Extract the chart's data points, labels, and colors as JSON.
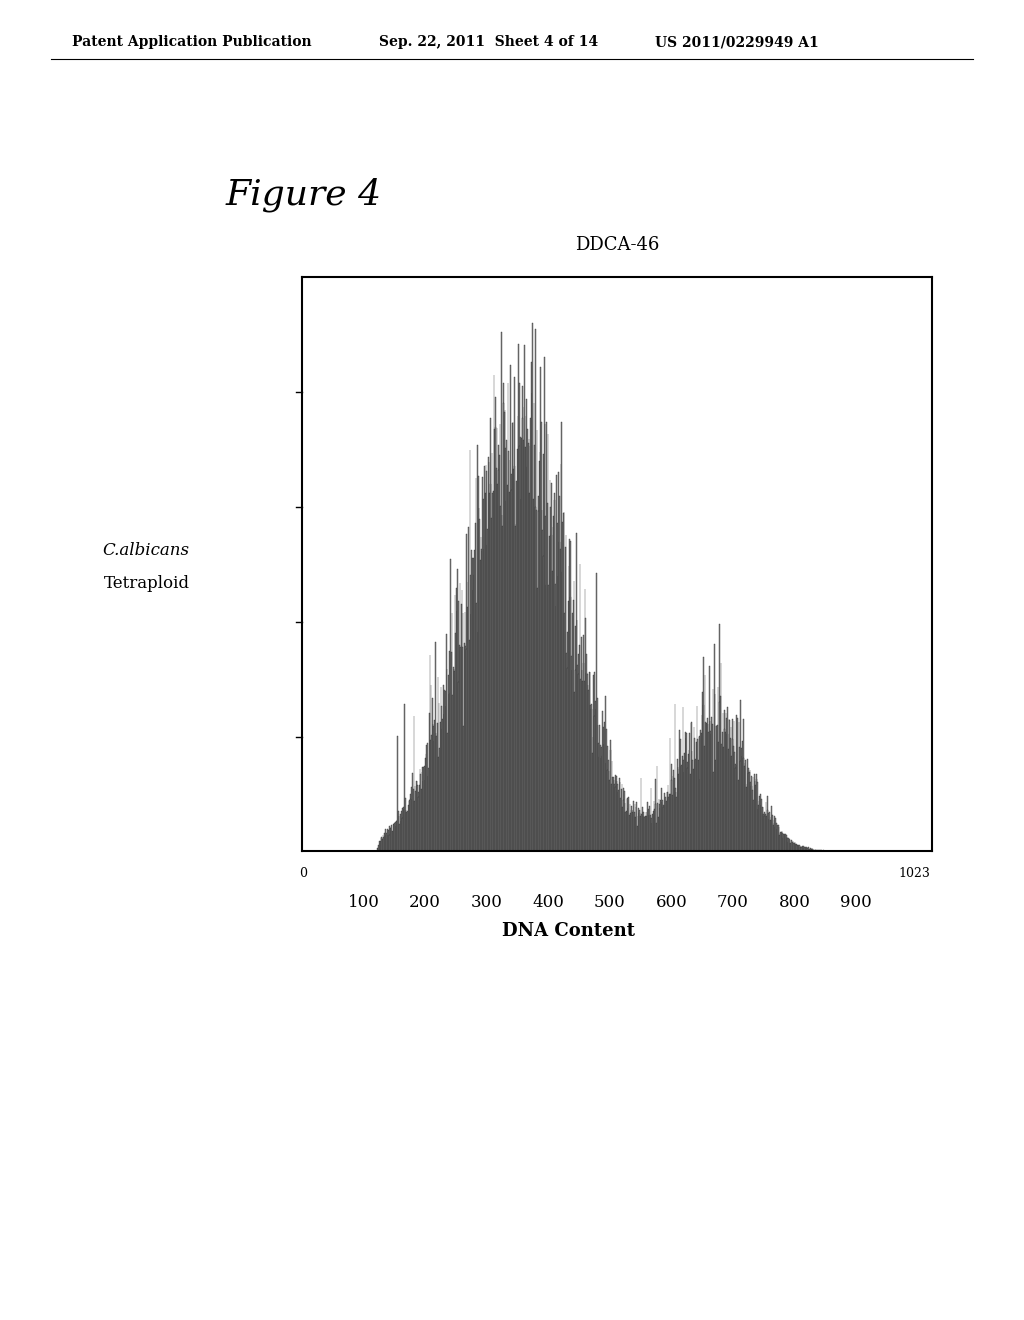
{
  "figure_title": "Figure 4",
  "chart_title": "DDCA-46",
  "ylabel_line1": "C.albicans",
  "ylabel_line2": "Tetraploid",
  "xlabel": "DNA Content",
  "x_tick_labels": [
    "100",
    "200",
    "300",
    "400",
    "500",
    "600",
    "700",
    "800",
    "900"
  ],
  "x_tick_positions": [
    100,
    200,
    300,
    400,
    500,
    600,
    700,
    800,
    900
  ],
  "x_axis_start_label": "0",
  "x_axis_end_label": "1023",
  "xlim": [
    0,
    1023
  ],
  "ylim": [
    0,
    1000
  ],
  "bar_color": "#888888",
  "bar_edge_color": "#222222",
  "background_color": "#ffffff",
  "patent_line1": "Patent Application Publication",
  "patent_line2": "Sep. 22, 2011  Sheet 4 of 14",
  "patent_line3": "US 2011/0229949 A1"
}
